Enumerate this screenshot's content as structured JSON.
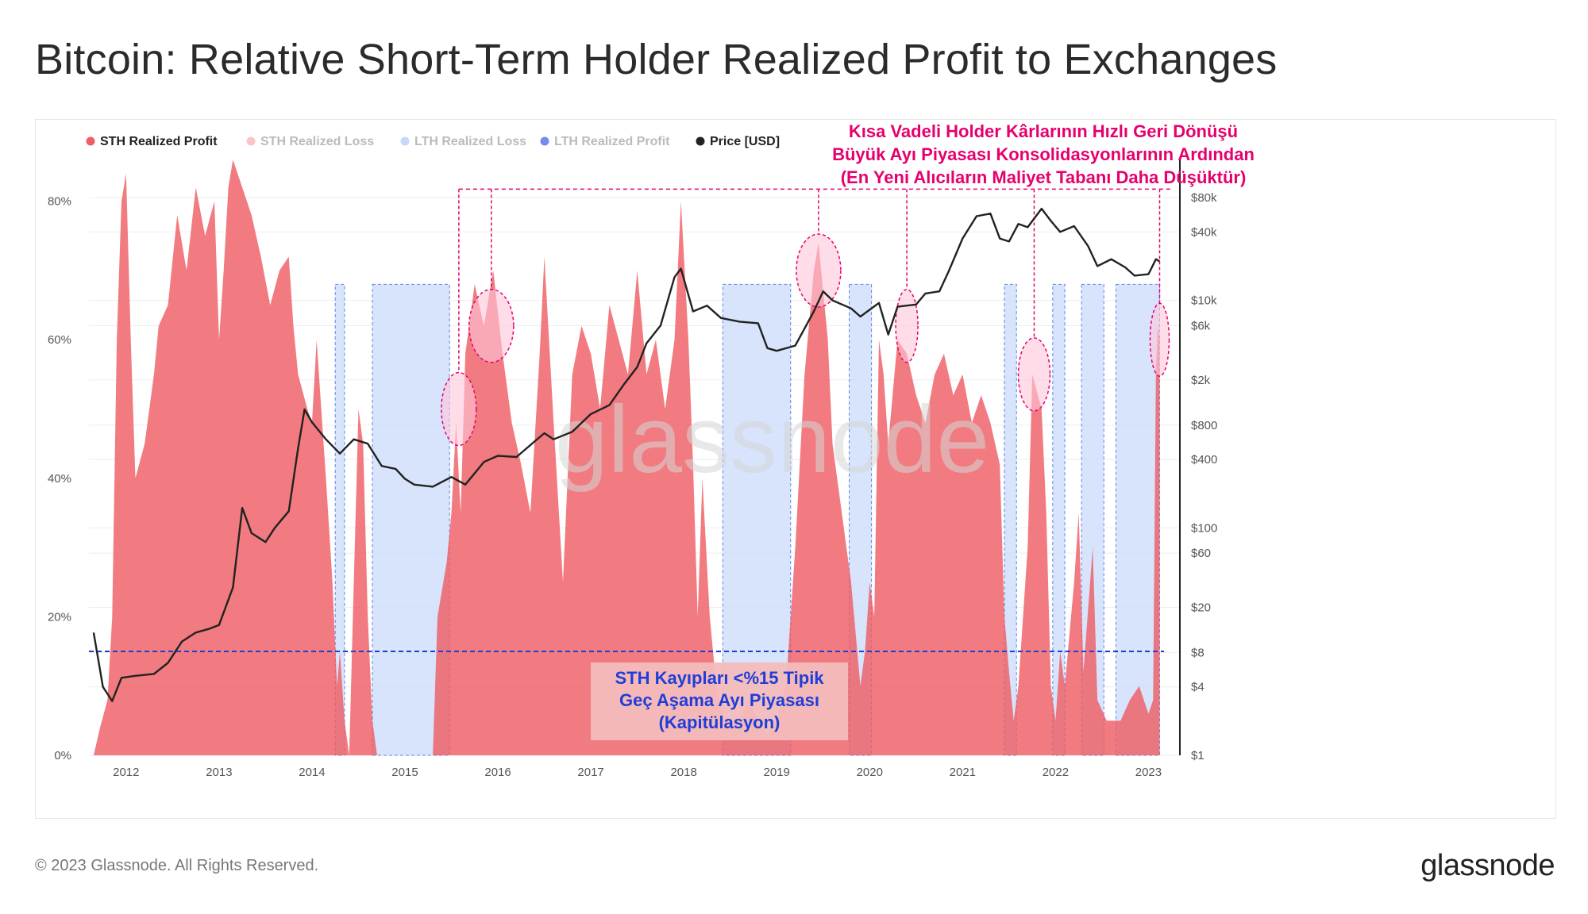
{
  "title": "Bitcoin: Relative Short-Term Holder Realized Profit to Exchanges",
  "footer": {
    "copyright": "© 2023 Glassnode. All Rights Reserved.",
    "logo": "glassnode"
  },
  "watermark": "glassnode",
  "colors": {
    "sth_profit": "#ee5e64",
    "sth_loss": "#f4a6ab",
    "lth_loss": "#cdddfb",
    "lth_profit": "#2c4fe0",
    "price": "#222222",
    "highlight": "#e6006e",
    "threshold": "#1e3ed8"
  },
  "chart_data": {
    "type": "area",
    "title": "Bitcoin: Relative Short-Term Holder Realized Profit to Exchanges",
    "x_ticks": [
      "2012",
      "2013",
      "2014",
      "2015",
      "2016",
      "2017",
      "2018",
      "2019",
      "2020",
      "2021",
      "2022",
      "2023"
    ],
    "x_range": [
      2011.6,
      2023.15
    ],
    "y_left_ticks": [
      "0%",
      "20%",
      "40%",
      "60%",
      "80%"
    ],
    "y_left_range": [
      0,
      85
    ],
    "y_right_ticks": [
      {
        "label": "$80k",
        "value": 80000
      },
      {
        "label": "$40k",
        "value": 40000
      },
      {
        "label": "$10k",
        "value": 10000
      },
      {
        "label": "$6k",
        "value": 6000
      },
      {
        "label": "$2k",
        "value": 2000
      },
      {
        "label": "$800",
        "value": 800
      },
      {
        "label": "$400",
        "value": 400
      },
      {
        "label": "$100",
        "value": 100
      },
      {
        "label": "$60",
        "value": 60
      },
      {
        "label": "$20",
        "value": 20
      },
      {
        "label": "$8",
        "value": 8
      },
      {
        "label": "$4",
        "value": 4
      },
      {
        "label": "$1",
        "value": 1
      }
    ],
    "y_right_range": [
      1,
      150000
    ],
    "legend": [
      {
        "name": "STH Realized Profit",
        "color": "#ee5e64",
        "active": true
      },
      {
        "name": "STH Realized Loss",
        "color": "#f4a6ab",
        "active": false
      },
      {
        "name": "LTH Realized Loss",
        "color": "#a9c1f5",
        "active": false
      },
      {
        "name": "LTH Realized Profit",
        "color": "#2c4fe0",
        "active": false
      },
      {
        "name": "Price [USD]",
        "color": "#222222",
        "active": true
      }
    ],
    "sth_profit_pct": [
      [
        2011.65,
        0
      ],
      [
        2011.72,
        4
      ],
      [
        2011.8,
        8
      ],
      [
        2011.85,
        20
      ],
      [
        2011.9,
        60
      ],
      [
        2011.95,
        80
      ],
      [
        2012.0,
        84
      ],
      [
        2012.05,
        60
      ],
      [
        2012.1,
        40
      ],
      [
        2012.2,
        45
      ],
      [
        2012.3,
        55
      ],
      [
        2012.35,
        62
      ],
      [
        2012.45,
        65
      ],
      [
        2012.55,
        78
      ],
      [
        2012.65,
        70
      ],
      [
        2012.75,
        82
      ],
      [
        2012.85,
        75
      ],
      [
        2012.95,
        80
      ],
      [
        2013.0,
        60
      ],
      [
        2013.05,
        70
      ],
      [
        2013.1,
        82
      ],
      [
        2013.15,
        86
      ],
      [
        2013.25,
        82
      ],
      [
        2013.35,
        78
      ],
      [
        2013.45,
        72
      ],
      [
        2013.55,
        65
      ],
      [
        2013.65,
        70
      ],
      [
        2013.75,
        72
      ],
      [
        2013.8,
        62
      ],
      [
        2013.85,
        55
      ],
      [
        2013.95,
        50
      ],
      [
        2014.0,
        48
      ],
      [
        2014.05,
        60
      ],
      [
        2014.1,
        50
      ],
      [
        2014.15,
        40
      ],
      [
        2014.22,
        25
      ],
      [
        2014.27,
        10
      ],
      [
        2014.3,
        15
      ],
      [
        2014.35,
        5
      ],
      [
        2014.4,
        0
      ],
      [
        2014.45,
        25
      ],
      [
        2014.5,
        50
      ],
      [
        2014.55,
        45
      ],
      [
        2014.6,
        20
      ],
      [
        2014.65,
        5
      ],
      [
        2014.7,
        0
      ],
      [
        2015.3,
        0
      ],
      [
        2015.35,
        20
      ],
      [
        2015.45,
        28
      ],
      [
        2015.5,
        35
      ],
      [
        2015.55,
        48
      ],
      [
        2015.6,
        35
      ],
      [
        2015.65,
        58
      ],
      [
        2015.75,
        68
      ],
      [
        2015.85,
        62
      ],
      [
        2015.95,
        70
      ],
      [
        2016.05,
        58
      ],
      [
        2016.15,
        48
      ],
      [
        2016.25,
        42
      ],
      [
        2016.35,
        35
      ],
      [
        2016.45,
        58
      ],
      [
        2016.5,
        72
      ],
      [
        2016.6,
        48
      ],
      [
        2016.7,
        25
      ],
      [
        2016.8,
        55
      ],
      [
        2016.9,
        62
      ],
      [
        2017.0,
        58
      ],
      [
        2017.1,
        50
      ],
      [
        2017.2,
        65
      ],
      [
        2017.3,
        60
      ],
      [
        2017.4,
        55
      ],
      [
        2017.5,
        70
      ],
      [
        2017.6,
        55
      ],
      [
        2017.7,
        60
      ],
      [
        2017.8,
        50
      ],
      [
        2017.9,
        60
      ],
      [
        2017.97,
        80
      ],
      [
        2018.05,
        60
      ],
      [
        2018.1,
        42
      ],
      [
        2018.15,
        20
      ],
      [
        2018.2,
        40
      ],
      [
        2018.28,
        20
      ],
      [
        2018.35,
        10
      ],
      [
        2018.45,
        5
      ],
      [
        2018.6,
        5
      ],
      [
        2018.7,
        8
      ],
      [
        2018.8,
        5
      ],
      [
        2018.9,
        3
      ],
      [
        2019.0,
        5
      ],
      [
        2019.1,
        10
      ],
      [
        2019.2,
        30
      ],
      [
        2019.3,
        55
      ],
      [
        2019.4,
        70
      ],
      [
        2019.45,
        74
      ],
      [
        2019.55,
        60
      ],
      [
        2019.6,
        45
      ],
      [
        2019.7,
        35
      ],
      [
        2019.8,
        25
      ],
      [
        2019.9,
        10
      ],
      [
        2019.95,
        15
      ],
      [
        2020.0,
        25
      ],
      [
        2020.05,
        20
      ],
      [
        2020.1,
        60
      ],
      [
        2020.15,
        55
      ],
      [
        2020.2,
        45
      ],
      [
        2020.3,
        60
      ],
      [
        2020.4,
        58
      ],
      [
        2020.5,
        52
      ],
      [
        2020.6,
        48
      ],
      [
        2020.7,
        55
      ],
      [
        2020.8,
        58
      ],
      [
        2020.9,
        52
      ],
      [
        2021.0,
        55
      ],
      [
        2021.1,
        48
      ],
      [
        2021.2,
        52
      ],
      [
        2021.3,
        48
      ],
      [
        2021.4,
        42
      ],
      [
        2021.45,
        20
      ],
      [
        2021.5,
        12
      ],
      [
        2021.55,
        5
      ],
      [
        2021.6,
        10
      ],
      [
        2021.7,
        30
      ],
      [
        2021.75,
        55
      ],
      [
        2021.85,
        50
      ],
      [
        2021.9,
        35
      ],
      [
        2021.95,
        10
      ],
      [
        2022.0,
        5
      ],
      [
        2022.05,
        15
      ],
      [
        2022.1,
        10
      ],
      [
        2022.2,
        25
      ],
      [
        2022.25,
        35
      ],
      [
        2022.3,
        12
      ],
      [
        2022.4,
        30
      ],
      [
        2022.45,
        8
      ],
      [
        2022.55,
        5
      ],
      [
        2022.7,
        5
      ],
      [
        2022.8,
        8
      ],
      [
        2022.9,
        10
      ],
      [
        2023.0,
        6
      ],
      [
        2023.05,
        8
      ],
      [
        2023.08,
        55
      ],
      [
        2023.1,
        62
      ],
      [
        2023.12,
        60
      ]
    ],
    "lth_loss_regions": [
      [
        2014.25,
        2014.35
      ],
      [
        2014.65,
        2015.48
      ],
      [
        2018.42,
        2019.15
      ],
      [
        2019.78,
        2020.02
      ],
      [
        2021.45,
        2021.58
      ],
      [
        2021.97,
        2022.1
      ],
      [
        2022.28,
        2022.52
      ],
      [
        2022.65,
        2023.12
      ]
    ],
    "price_usd": [
      [
        2011.65,
        12
      ],
      [
        2011.7,
        7
      ],
      [
        2011.75,
        4
      ],
      [
        2011.85,
        3
      ],
      [
        2011.95,
        4.8
      ],
      [
        2012.1,
        5
      ],
      [
        2012.3,
        5.2
      ],
      [
        2012.45,
        6.5
      ],
      [
        2012.6,
        10
      ],
      [
        2012.75,
        12
      ],
      [
        2012.9,
        13
      ],
      [
        2013.0,
        14
      ],
      [
        2013.15,
        30
      ],
      [
        2013.25,
        150
      ],
      [
        2013.35,
        90
      ],
      [
        2013.5,
        75
      ],
      [
        2013.6,
        100
      ],
      [
        2013.75,
        140
      ],
      [
        2013.85,
        500
      ],
      [
        2013.92,
        1100
      ],
      [
        2014.0,
        850
      ],
      [
        2014.15,
        600
      ],
      [
        2014.3,
        450
      ],
      [
        2014.45,
        600
      ],
      [
        2014.6,
        550
      ],
      [
        2014.75,
        350
      ],
      [
        2014.9,
        330
      ],
      [
        2015.0,
        270
      ],
      [
        2015.1,
        240
      ],
      [
        2015.3,
        230
      ],
      [
        2015.5,
        280
      ],
      [
        2015.65,
        240
      ],
      [
        2015.85,
        380
      ],
      [
        2016.0,
        430
      ],
      [
        2016.2,
        420
      ],
      [
        2016.4,
        580
      ],
      [
        2016.5,
        680
      ],
      [
        2016.6,
        600
      ],
      [
        2016.8,
        700
      ],
      [
        2017.0,
        1000
      ],
      [
        2017.2,
        1200
      ],
      [
        2017.35,
        1800
      ],
      [
        2017.5,
        2600
      ],
      [
        2017.6,
        4200
      ],
      [
        2017.75,
        6000
      ],
      [
        2017.9,
        16000
      ],
      [
        2017.97,
        19000
      ],
      [
        2018.1,
        8000
      ],
      [
        2018.25,
        9000
      ],
      [
        2018.4,
        7000
      ],
      [
        2018.6,
        6500
      ],
      [
        2018.8,
        6300
      ],
      [
        2018.9,
        3800
      ],
      [
        2019.0,
        3600
      ],
      [
        2019.2,
        4000
      ],
      [
        2019.4,
        8000
      ],
      [
        2019.5,
        12000
      ],
      [
        2019.6,
        10000
      ],
      [
        2019.8,
        8500
      ],
      [
        2019.9,
        7200
      ],
      [
        2020.1,
        9500
      ],
      [
        2020.2,
        5000
      ],
      [
        2020.3,
        8800
      ],
      [
        2020.5,
        9200
      ],
      [
        2020.6,
        11500
      ],
      [
        2020.75,
        12000
      ],
      [
        2020.85,
        18000
      ],
      [
        2021.0,
        35000
      ],
      [
        2021.15,
        55000
      ],
      [
        2021.3,
        58000
      ],
      [
        2021.4,
        35000
      ],
      [
        2021.5,
        33000
      ],
      [
        2021.6,
        47000
      ],
      [
        2021.7,
        44000
      ],
      [
        2021.85,
        64000
      ],
      [
        2021.95,
        50000
      ],
      [
        2022.05,
        40000
      ],
      [
        2022.2,
        45000
      ],
      [
        2022.35,
        30000
      ],
      [
        2022.45,
        20000
      ],
      [
        2022.6,
        23000
      ],
      [
        2022.75,
        19500
      ],
      [
        2022.85,
        16500
      ],
      [
        2023.0,
        17000
      ],
      [
        2023.08,
        23000
      ],
      [
        2023.12,
        22000
      ]
    ],
    "threshold_line": {
      "value": 15
    },
    "annotations": {
      "red_lines": [
        "Kısa Vadeli Holder Kârlarının Hızlı Geri Dönüşü",
        "Büyük Ayı Piyasası Konsolidasyonlarının Ardından",
        "(En Yeni Alıcıların Maliyet Tabanı Daha Düşüktür)"
      ],
      "blue_lines": [
        "STH Kayıpları <%15 Tipik",
        "Geç Aşama Ayı Piyasası",
        "(Kapitülasyon)"
      ],
      "highlight_dates": [
        2015.58,
        2015.93,
        2019.45,
        2020.4,
        2021.77,
        2023.12
      ]
    }
  }
}
